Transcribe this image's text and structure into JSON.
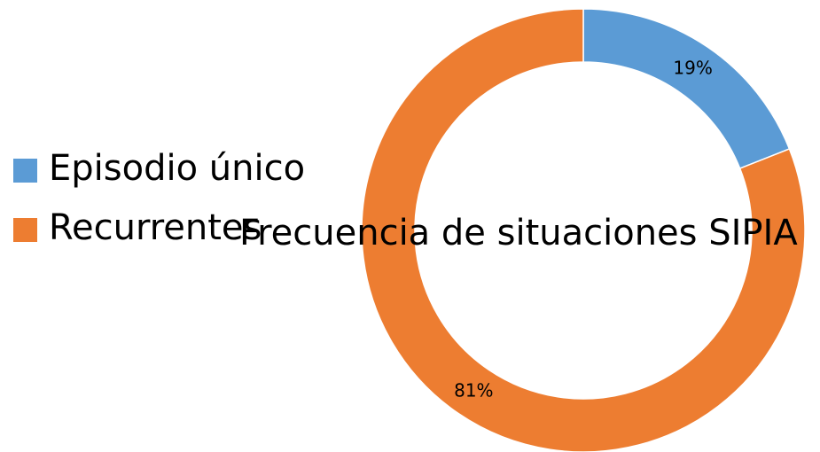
{
  "chart_data": {
    "type": "donut",
    "title": "Frecuencia de situaciones SIPIA",
    "categories": [
      "Episodio único",
      "Recurrentes"
    ],
    "values": [
      19,
      81
    ],
    "value_labels": [
      "19%",
      "81%"
    ],
    "colors": [
      "#5b9bd5",
      "#ed7d31"
    ],
    "legend": "left"
  }
}
